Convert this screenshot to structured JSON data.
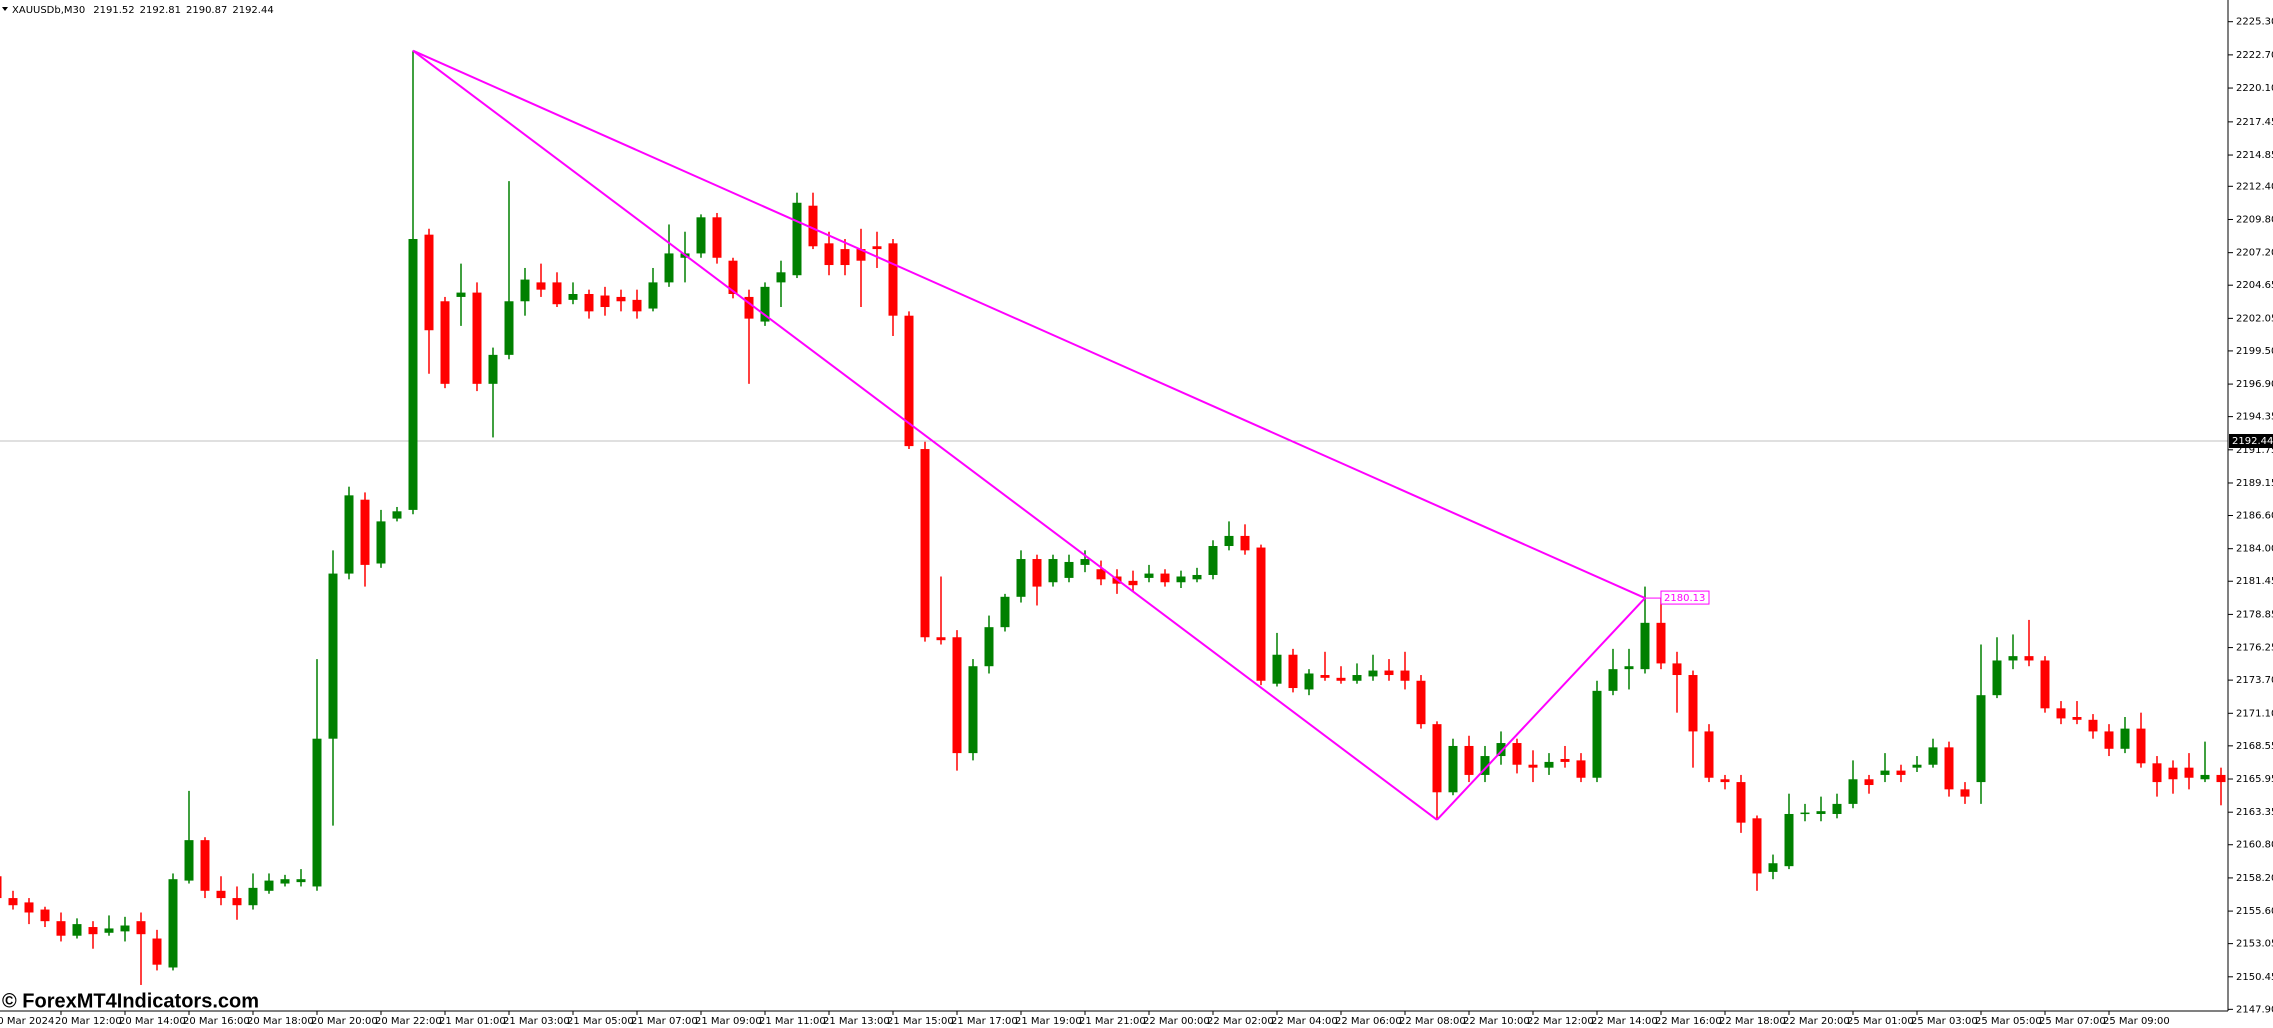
{
  "chart_data": {
    "type": "candlestick",
    "header": {
      "symbol": "XAUUSDb,M30",
      "ohlc": [
        2191.52,
        2192.81,
        2190.87,
        2192.44
      ]
    },
    "watermark": "© ForexMT4Indicators.com",
    "bid": 2192.44,
    "up_color": "#008000",
    "down_color": "#ff0000",
    "categories": [
      "20 Mar 2024",
      null,
      null,
      null,
      "20 Mar 12:00",
      null,
      null,
      null,
      "20 Mar 14:00",
      null,
      null,
      null,
      "20 Mar 16:00",
      null,
      null,
      null,
      "20 Mar 18:00",
      null,
      null,
      null,
      "20 Mar 20:00",
      null,
      null,
      null,
      "20 Mar 22:00",
      null,
      null,
      null,
      "21 Mar 01:00",
      null,
      null,
      null,
      "21 Mar 03:00",
      null,
      null,
      null,
      "21 Mar 05:00",
      null,
      null,
      null,
      "21 Mar 07:00",
      null,
      null,
      null,
      "21 Mar 09:00",
      null,
      null,
      null,
      "21 Mar 11:00",
      null,
      null,
      null,
      "21 Mar 13:00",
      null,
      null,
      null,
      "21 Mar 15:00",
      null,
      null,
      null,
      "21 Mar 17:00",
      null,
      null,
      null,
      "21 Mar 19:00",
      null,
      null,
      null,
      "21 Mar 21:00",
      null,
      null,
      null,
      "22 Mar 00:00",
      null,
      null,
      null,
      "22 Mar 02:00",
      null,
      null,
      null,
      "22 Mar 04:00",
      null,
      null,
      null,
      "22 Mar 06:00",
      null,
      null,
      null,
      "22 Mar 08:00",
      null,
      null,
      null,
      "22 Mar 10:00",
      null,
      null,
      null,
      "22 Mar 12:00",
      null,
      null,
      null,
      "22 Mar 14:00",
      null,
      null,
      null,
      "22 Mar 16:00",
      null,
      null,
      null,
      "22 Mar 18:00",
      null,
      null,
      null,
      "22 Mar 20:00",
      null,
      null,
      null,
      "25 Mar 01:00",
      null,
      null,
      null,
      "25 Mar 03:00",
      null,
      null,
      null,
      "25 Mar 05:00",
      null,
      null,
      null,
      "25 Mar 07:00",
      null,
      null,
      null,
      "25 Mar 09:00",
      null,
      null,
      null,
      null,
      null,
      null,
      null
    ],
    "open": [
      2158.33,
      2156.62,
      2156.28,
      2155.72,
      2154.81,
      2153.67,
      2154.35,
      2153.9,
      2154.01,
      2154.81,
      2153.45,
      2151.18,
      2157.99,
      2161.16,
      2157.19,
      2156.62,
      2156.06,
      2157.19,
      2157.76,
      2157.87,
      2157.53,
      2169.11,
      2182.05,
      2187.84,
      2182.84,
      2186.36,
      2187.04,
      2208.61,
      2203.39,
      2203.73,
      2204.07,
      2196.92,
      2199.19,
      2203.39,
      2204.87,
      2204.87,
      2203.5,
      2203.96,
      2203.84,
      2203.73,
      2203.5,
      2202.82,
      2204.87,
      2206.8,
      2207.14,
      2209.97,
      2206.57,
      2203.73,
      2201.8,
      2204.87,
      2205.43,
      2210.88,
      2207.93,
      2207.48,
      2207.48,
      2207.7,
      2207.93,
      2202.26,
      2191.81,
      2177.06,
      2177.06,
      2167.98,
      2174.79,
      2177.85,
      2180.23,
      2183.19,
      2181.37,
      2181.71,
      2182.73,
      2182.39,
      2181.82,
      2181.48,
      2181.71,
      2182.05,
      2181.37,
      2181.6,
      2181.94,
      2184.21,
      2185.0,
      2184.09,
      2173.42,
      2175.69,
      2172.97,
      2174.1,
      2173.88,
      2173.65,
      2173.99,
      2174.45,
      2174.45,
      2173.65,
      2170.25,
      2164.91,
      2168.54,
      2166.27,
      2167.75,
      2168.77,
      2167.07,
      2166.84,
      2167.52,
      2167.41,
      2166.05,
      2172.86,
      2174.56,
      2174.56,
      2178.19,
      2175.01,
      2174.1,
      2169.68,
      2165.93,
      2165.71,
      2162.87,
      2158.67,
      2159.12,
      2163.21,
      2163.21,
      2163.21,
      2164.0,
      2165.93,
      2166.27,
      2166.61,
      2166.84,
      2167.07,
      2168.43,
      2165.14,
      2165.71,
      2172.52,
      2175.24,
      2175.58,
      2175.24,
      2171.49,
      2170.81,
      2170.59,
      2169.68,
      2168.32,
      2169.9,
      2167.18,
      2166.84,
      2166.84,
      2165.93,
      2166.27
    ],
    "high": [
      2158.55,
      2157.19,
      2156.62,
      2155.94,
      2155.49,
      2155.03,
      2154.81,
      2155.26,
      2155.15,
      2155.49,
      2154.13,
      2158.55,
      2165.02,
      2161.39,
      2158.33,
      2157.53,
      2158.55,
      2158.55,
      2158.44,
      2158.89,
      2175.35,
      2183.87,
      2188.86,
      2188.41,
      2187.04,
      2187.27,
      2223.03,
      2209.07,
      2203.73,
      2206.34,
      2204.87,
      2199.76,
      2212.81,
      2206.0,
      2206.34,
      2205.66,
      2204.87,
      2204.3,
      2204.52,
      2204.3,
      2204.3,
      2206.0,
      2209.41,
      2208.84,
      2210.2,
      2210.31,
      2206.8,
      2204.3,
      2204.87,
      2206.57,
      2211.9,
      2211.9,
      2208.84,
      2208.27,
      2209.07,
      2208.84,
      2208.27,
      2202.6,
      2192.38,
      2181.82,
      2177.62,
      2175.35,
      2178.76,
      2180.46,
      2183.87,
      2183.53,
      2183.53,
      2183.53,
      2183.87,
      2183.07,
      2182.39,
      2182.28,
      2182.73,
      2182.39,
      2182.28,
      2182.5,
      2184.66,
      2186.14,
      2185.91,
      2184.32,
      2177.4,
      2176.15,
      2174.56,
      2175.92,
      2174.79,
      2175.01,
      2175.69,
      2175.35,
      2175.92,
      2174.1,
      2170.47,
      2169.11,
      2169.34,
      2168.54,
      2169.68,
      2169.11,
      2168.2,
      2167.98,
      2168.54,
      2167.98,
      2173.65,
      2176.15,
      2176.15,
      2181.03,
      2180.12,
      2175.92,
      2174.45,
      2170.25,
      2166.27,
      2166.27,
      2163.09,
      2160.03,
      2164.8,
      2164.0,
      2164.57,
      2164.8,
      2167.41,
      2166.27,
      2167.98,
      2167.07,
      2167.75,
      2169.11,
      2168.88,
      2165.71,
      2176.49,
      2177.06,
      2177.28,
      2178.42,
      2175.58,
      2172.06,
      2172.06,
      2171.04,
      2170.25,
      2170.81,
      2171.15,
      2167.75,
      2167.41,
      2167.98,
      2168.88,
      2166.84
    ],
    "low": [
      2156.4,
      2155.72,
      2154.58,
      2154.35,
      2153.22,
      2153.45,
      2152.65,
      2153.67,
      2153.22,
      2149.81,
      2150.95,
      2150.95,
      2157.76,
      2156.62,
      2156.06,
      2154.92,
      2155.72,
      2156.96,
      2157.53,
      2157.53,
      2157.19,
      2162.3,
      2181.6,
      2181.03,
      2182.5,
      2186.14,
      2186.7,
      2197.71,
      2196.58,
      2201.46,
      2196.35,
      2192.72,
      2198.85,
      2202.26,
      2203.73,
      2202.94,
      2203.16,
      2202.03,
      2202.26,
      2202.6,
      2202.03,
      2202.6,
      2204.52,
      2204.87,
      2206.8,
      2206.34,
      2203.62,
      2196.92,
      2201.46,
      2202.94,
      2205.21,
      2207.48,
      2205.43,
      2205.43,
      2202.94,
      2206.0,
      2200.67,
      2191.81,
      2176.72,
      2176.49,
      2166.61,
      2167.41,
      2174.22,
      2177.51,
      2179.78,
      2179.55,
      2181.03,
      2181.37,
      2182.16,
      2181.14,
      2180.46,
      2180.69,
      2181.37,
      2181.03,
      2180.92,
      2181.37,
      2181.6,
      2183.87,
      2183.53,
      2173.31,
      2173.2,
      2172.74,
      2172.52,
      2173.65,
      2173.42,
      2173.42,
      2173.65,
      2173.65,
      2172.97,
      2169.9,
      2162.75,
      2164.68,
      2165.71,
      2165.71,
      2167.07,
      2166.39,
      2165.71,
      2166.27,
      2166.84,
      2165.71,
      2165.71,
      2172.52,
      2172.97,
      2174.22,
      2174.56,
      2171.15,
      2166.84,
      2165.71,
      2165.14,
      2161.73,
      2157.19,
      2158.1,
      2158.89,
      2162.64,
      2162.64,
      2162.87,
      2163.66,
      2164.8,
      2165.71,
      2165.71,
      2166.5,
      2166.84,
      2164.57,
      2164.0,
      2164.0,
      2172.29,
      2174.56,
      2174.79,
      2171.15,
      2170.25,
      2170.25,
      2169.11,
      2167.75,
      2167.98,
      2166.84,
      2164.57,
      2164.8,
      2165.14,
      2165.71,
      2163.89
    ],
    "close": [
      2156.62,
      2156.06,
      2155.49,
      2154.81,
      2153.67,
      2154.58,
      2153.79,
      2154.24,
      2154.47,
      2153.79,
      2151.4,
      2158.1,
      2161.16,
      2157.19,
      2156.62,
      2156.06,
      2157.42,
      2157.99,
      2158.1,
      2158.1,
      2169.11,
      2182.05,
      2188.18,
      2182.73,
      2186.14,
      2186.93,
      2208.27,
      2201.12,
      2196.92,
      2204.07,
      2196.92,
      2199.19,
      2203.39,
      2205.09,
      2204.3,
      2203.16,
      2203.96,
      2202.6,
      2202.94,
      2203.39,
      2202.6,
      2204.87,
      2207.14,
      2207.14,
      2209.97,
      2206.8,
      2203.96,
      2202.03,
      2204.52,
      2205.66,
      2211.11,
      2207.7,
      2206.23,
      2206.23,
      2206.57,
      2207.48,
      2202.26,
      2192.04,
      2177.06,
      2176.83,
      2167.98,
      2174.79,
      2177.85,
      2180.23,
      2183.19,
      2181.03,
      2183.19,
      2182.96,
      2183.19,
      2181.6,
      2181.26,
      2181.14,
      2182.05,
      2181.37,
      2181.82,
      2181.94,
      2184.21,
      2185.0,
      2183.87,
      2173.65,
      2175.69,
      2173.08,
      2174.22,
      2173.88,
      2173.65,
      2174.1,
      2174.45,
      2174.1,
      2173.65,
      2170.25,
      2164.91,
      2168.54,
      2166.27,
      2167.75,
      2168.77,
      2167.07,
      2166.84,
      2167.29,
      2167.29,
      2166.05,
      2172.86,
      2174.56,
      2174.79,
      2178.19,
      2175.01,
      2174.1,
      2169.68,
      2166.05,
      2165.71,
      2162.53,
      2158.55,
      2159.35,
      2163.21,
      2163.32,
      2163.43,
      2164.0,
      2165.93,
      2165.48,
      2166.61,
      2166.27,
      2167.07,
      2168.43,
      2165.14,
      2164.57,
      2172.52,
      2175.24,
      2175.58,
      2175.24,
      2171.49,
      2170.7,
      2170.59,
      2169.68,
      2168.32,
      2169.9,
      2167.18,
      2165.71,
      2165.93,
      2166.05,
      2166.27,
      2165.71
    ],
    "ylim": [
      2147.77,
      2227.0
    ],
    "yticks": [
      {
        "value": 2225.3,
        "label": "2225.30"
      },
      {
        "value": 2222.7,
        "label": "2222.70"
      },
      {
        "value": 2220.1,
        "label": "2220.10"
      },
      2217.45,
      2214.85,
      {
        "value": 2212.4,
        "label": "2212.40"
      },
      {
        "value": 2209.8,
        "label": "2209.80"
      },
      {
        "value": 2207.2,
        "label": "2207.20"
      },
      2204.65,
      2202.05,
      {
        "value": 2199.5,
        "label": "2199.50"
      },
      {
        "value": 2196.9,
        "label": "2196.90"
      },
      2194.35,
      2191.75,
      2189.15,
      {
        "value": 2186.6,
        "label": "2186.60"
      },
      {
        "value": 2184.0,
        "label": "2184.00"
      },
      2181.45,
      2178.85,
      2176.25,
      {
        "value": 2173.7,
        "label": "2173.70"
      },
      {
        "value": 2171.1,
        "label": "2171.10"
      },
      2168.55,
      2165.95,
      2163.35,
      {
        "value": 2160.8,
        "label": "2160.80"
      },
      {
        "value": 2158.2,
        "label": "2158.20"
      },
      {
        "value": 2155.6,
        "label": "2155.60"
      },
      2153.05,
      2150.45,
      {
        "value": 2147.9,
        "label": "2147.90"
      }
    ],
    "trendline": {
      "color": "#ff00ff",
      "points": [
        {
          "candle": 26,
          "price": 2223.03
        },
        {
          "candle": 90,
          "price": 2162.75
        },
        {
          "candle": 103,
          "price": 2180.13
        }
      ]
    }
  }
}
